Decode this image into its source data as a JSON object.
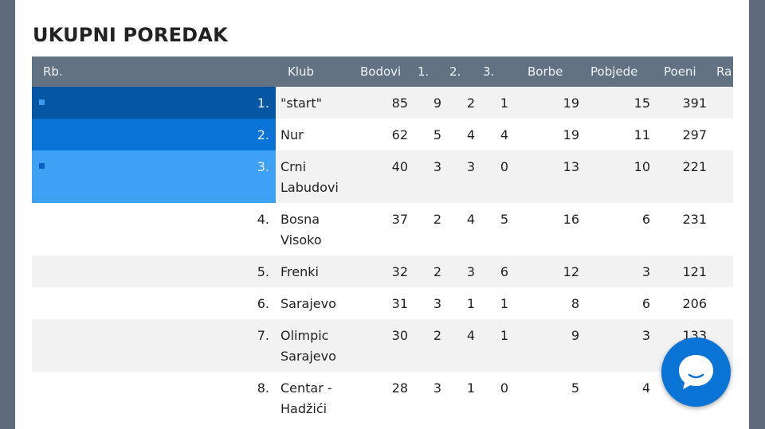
{
  "title": "UKUPNI POREDAK",
  "columns": [
    "Rb.",
    "Klub",
    "Bodovi",
    "1.",
    "2.",
    "3.",
    "Borbe",
    "Pobjede",
    "Poeni",
    "Ra"
  ],
  "rows": [
    {
      "rank": "1.",
      "club": "\"start\"",
      "bodovi": "85",
      "p1": "9",
      "p2": "2",
      "p3": "1",
      "borbe": "19",
      "pobjede": "15",
      "poeni": "391"
    },
    {
      "rank": "2.",
      "club": "Nur",
      "bodovi": "62",
      "p1": "5",
      "p2": "4",
      "p3": "4",
      "borbe": "19",
      "pobjede": "11",
      "poeni": "297"
    },
    {
      "rank": "3.",
      "club": "Crni Labudovi",
      "bodovi": "40",
      "p1": "3",
      "p2": "3",
      "p3": "0",
      "borbe": "13",
      "pobjede": "10",
      "poeni": "221"
    },
    {
      "rank": "4.",
      "club": "Bosna Visoko",
      "bodovi": "37",
      "p1": "2",
      "p2": "4",
      "p3": "5",
      "borbe": "16",
      "pobjede": "6",
      "poeni": "231"
    },
    {
      "rank": "5.",
      "club": "Frenki",
      "bodovi": "32",
      "p1": "2",
      "p2": "3",
      "p3": "6",
      "borbe": "12",
      "pobjede": "3",
      "poeni": "121"
    },
    {
      "rank": "6.",
      "club": "Sarajevo",
      "bodovi": "31",
      "p1": "3",
      "p2": "1",
      "p3": "1",
      "borbe": "8",
      "pobjede": "6",
      "poeni": "206"
    },
    {
      "rank": "7.",
      "club": "Olimpic Sarajevo",
      "bodovi": "30",
      "p1": "2",
      "p2": "4",
      "p3": "1",
      "borbe": "9",
      "pobjede": "3",
      "poeni": "133"
    },
    {
      "rank": "8.",
      "club": "Centar - Hadžići",
      "bodovi": "28",
      "p1": "3",
      "p2": "1",
      "p3": "0",
      "borbe": "5",
      "pobjede": "4",
      "poeni": ""
    }
  ],
  "chat_button": {
    "icon": "chat-bubble-icon",
    "color": "#0a73d6"
  },
  "colors": {
    "header": "#637283",
    "rank1": "#0557a3",
    "rank2": "#0a73d6",
    "rank3": "#3ea1f3"
  }
}
